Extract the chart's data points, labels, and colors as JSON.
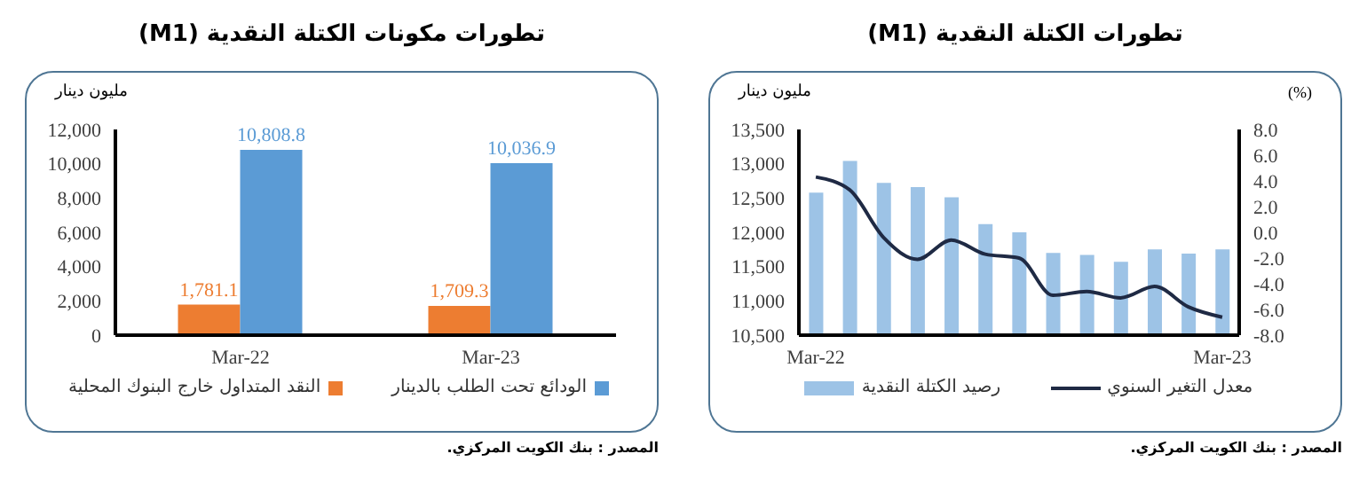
{
  "chart_data": [
    {
      "type": "bar",
      "title": "تطورات مكونات الكتلة النقدية (M1)",
      "ylabel": "مليون دينار",
      "categories": [
        "Mar-22",
        "Mar-23"
      ],
      "series": [
        {
          "name": "النقد المتداول خارج البنوك المحلية",
          "color": "#ed7d31",
          "values": [
            1781.1,
            1709.3
          ],
          "value_labels": [
            "1,781.1",
            "1,709.3"
          ]
        },
        {
          "name": "الودائع تحت الطلب بالدينار",
          "color": "#5b9bd5",
          "values": [
            10808.8,
            10036.9
          ],
          "value_labels": [
            "10,808.8",
            "10,036.9"
          ]
        }
      ],
      "ylim": [
        0,
        12000
      ],
      "yticks": [
        0,
        {
          "value": 2000,
          "label": "2,000"
        },
        {
          "value": 4000,
          "label": "4,000"
        },
        {
          "value": 6000,
          "label": "6,000"
        },
        {
          "value": 8000,
          "label": "8,000"
        },
        {
          "value": 10000,
          "label": "10,000"
        },
        {
          "value": 12000,
          "label": "12,000"
        }
      ],
      "legend": "bottom",
      "annotations": [
        "المصدر : بنك الكويت المركزي."
      ]
    },
    {
      "type": "bar",
      "title": "تطورات الكتلة النقدية (M1)",
      "ylabel": "مليون دينار",
      "y2label": "(%)",
      "categories": [
        "Mar-22",
        null,
        null,
        null,
        null,
        null,
        null,
        null,
        null,
        null,
        null,
        null,
        "Mar-23"
      ],
      "series": [
        {
          "name": "رصيد الكتلة النقدية",
          "color": "#9dc3e6",
          "values": [
            12580,
            13040,
            12720,
            12660,
            12510,
            12120,
            12000,
            11700,
            11670,
            11570,
            11750,
            11690,
            11750
          ]
        },
        {
          "name": "معدل التغير السنوي",
          "type": "line",
          "axis": "y2",
          "color": "#1f2a44",
          "values": [
            4.3,
            3.3,
            -0.4,
            -2.1,
            -0.6,
            -1.7,
            -2.0,
            -4.9,
            -4.6,
            -5.1,
            -4.2,
            -5.8,
            -6.6
          ]
        }
      ],
      "ylim": [
        10500,
        13500
      ],
      "yticks": [
        {
          "value": 10500,
          "label": "10,500"
        },
        {
          "value": 11000,
          "label": "11,000"
        },
        {
          "value": 11500,
          "label": "11,500"
        },
        {
          "value": 12000,
          "label": "12,000"
        },
        {
          "value": 12500,
          "label": "12,500"
        },
        {
          "value": 13000,
          "label": "13,000"
        },
        {
          "value": 13500,
          "label": "13,500"
        }
      ],
      "y2lim": [
        -8,
        8
      ],
      "y2ticks": [
        {
          "value": -8,
          "label": "-8.0"
        },
        {
          "value": -6,
          "label": "-6.0"
        },
        {
          "value": -4,
          "label": "-4.0"
        },
        {
          "value": -2,
          "label": "-2.0"
        },
        {
          "value": 0,
          "label": "0.0"
        },
        {
          "value": 2,
          "label": "2.0"
        },
        {
          "value": 4,
          "label": "4.0"
        },
        {
          "value": 6,
          "label": "6.0"
        },
        {
          "value": 8,
          "label": "8.0"
        }
      ],
      "marker": "none",
      "legend": "bottom",
      "annotations": [
        "المصدر : بنك الكويت المركزي."
      ]
    }
  ]
}
